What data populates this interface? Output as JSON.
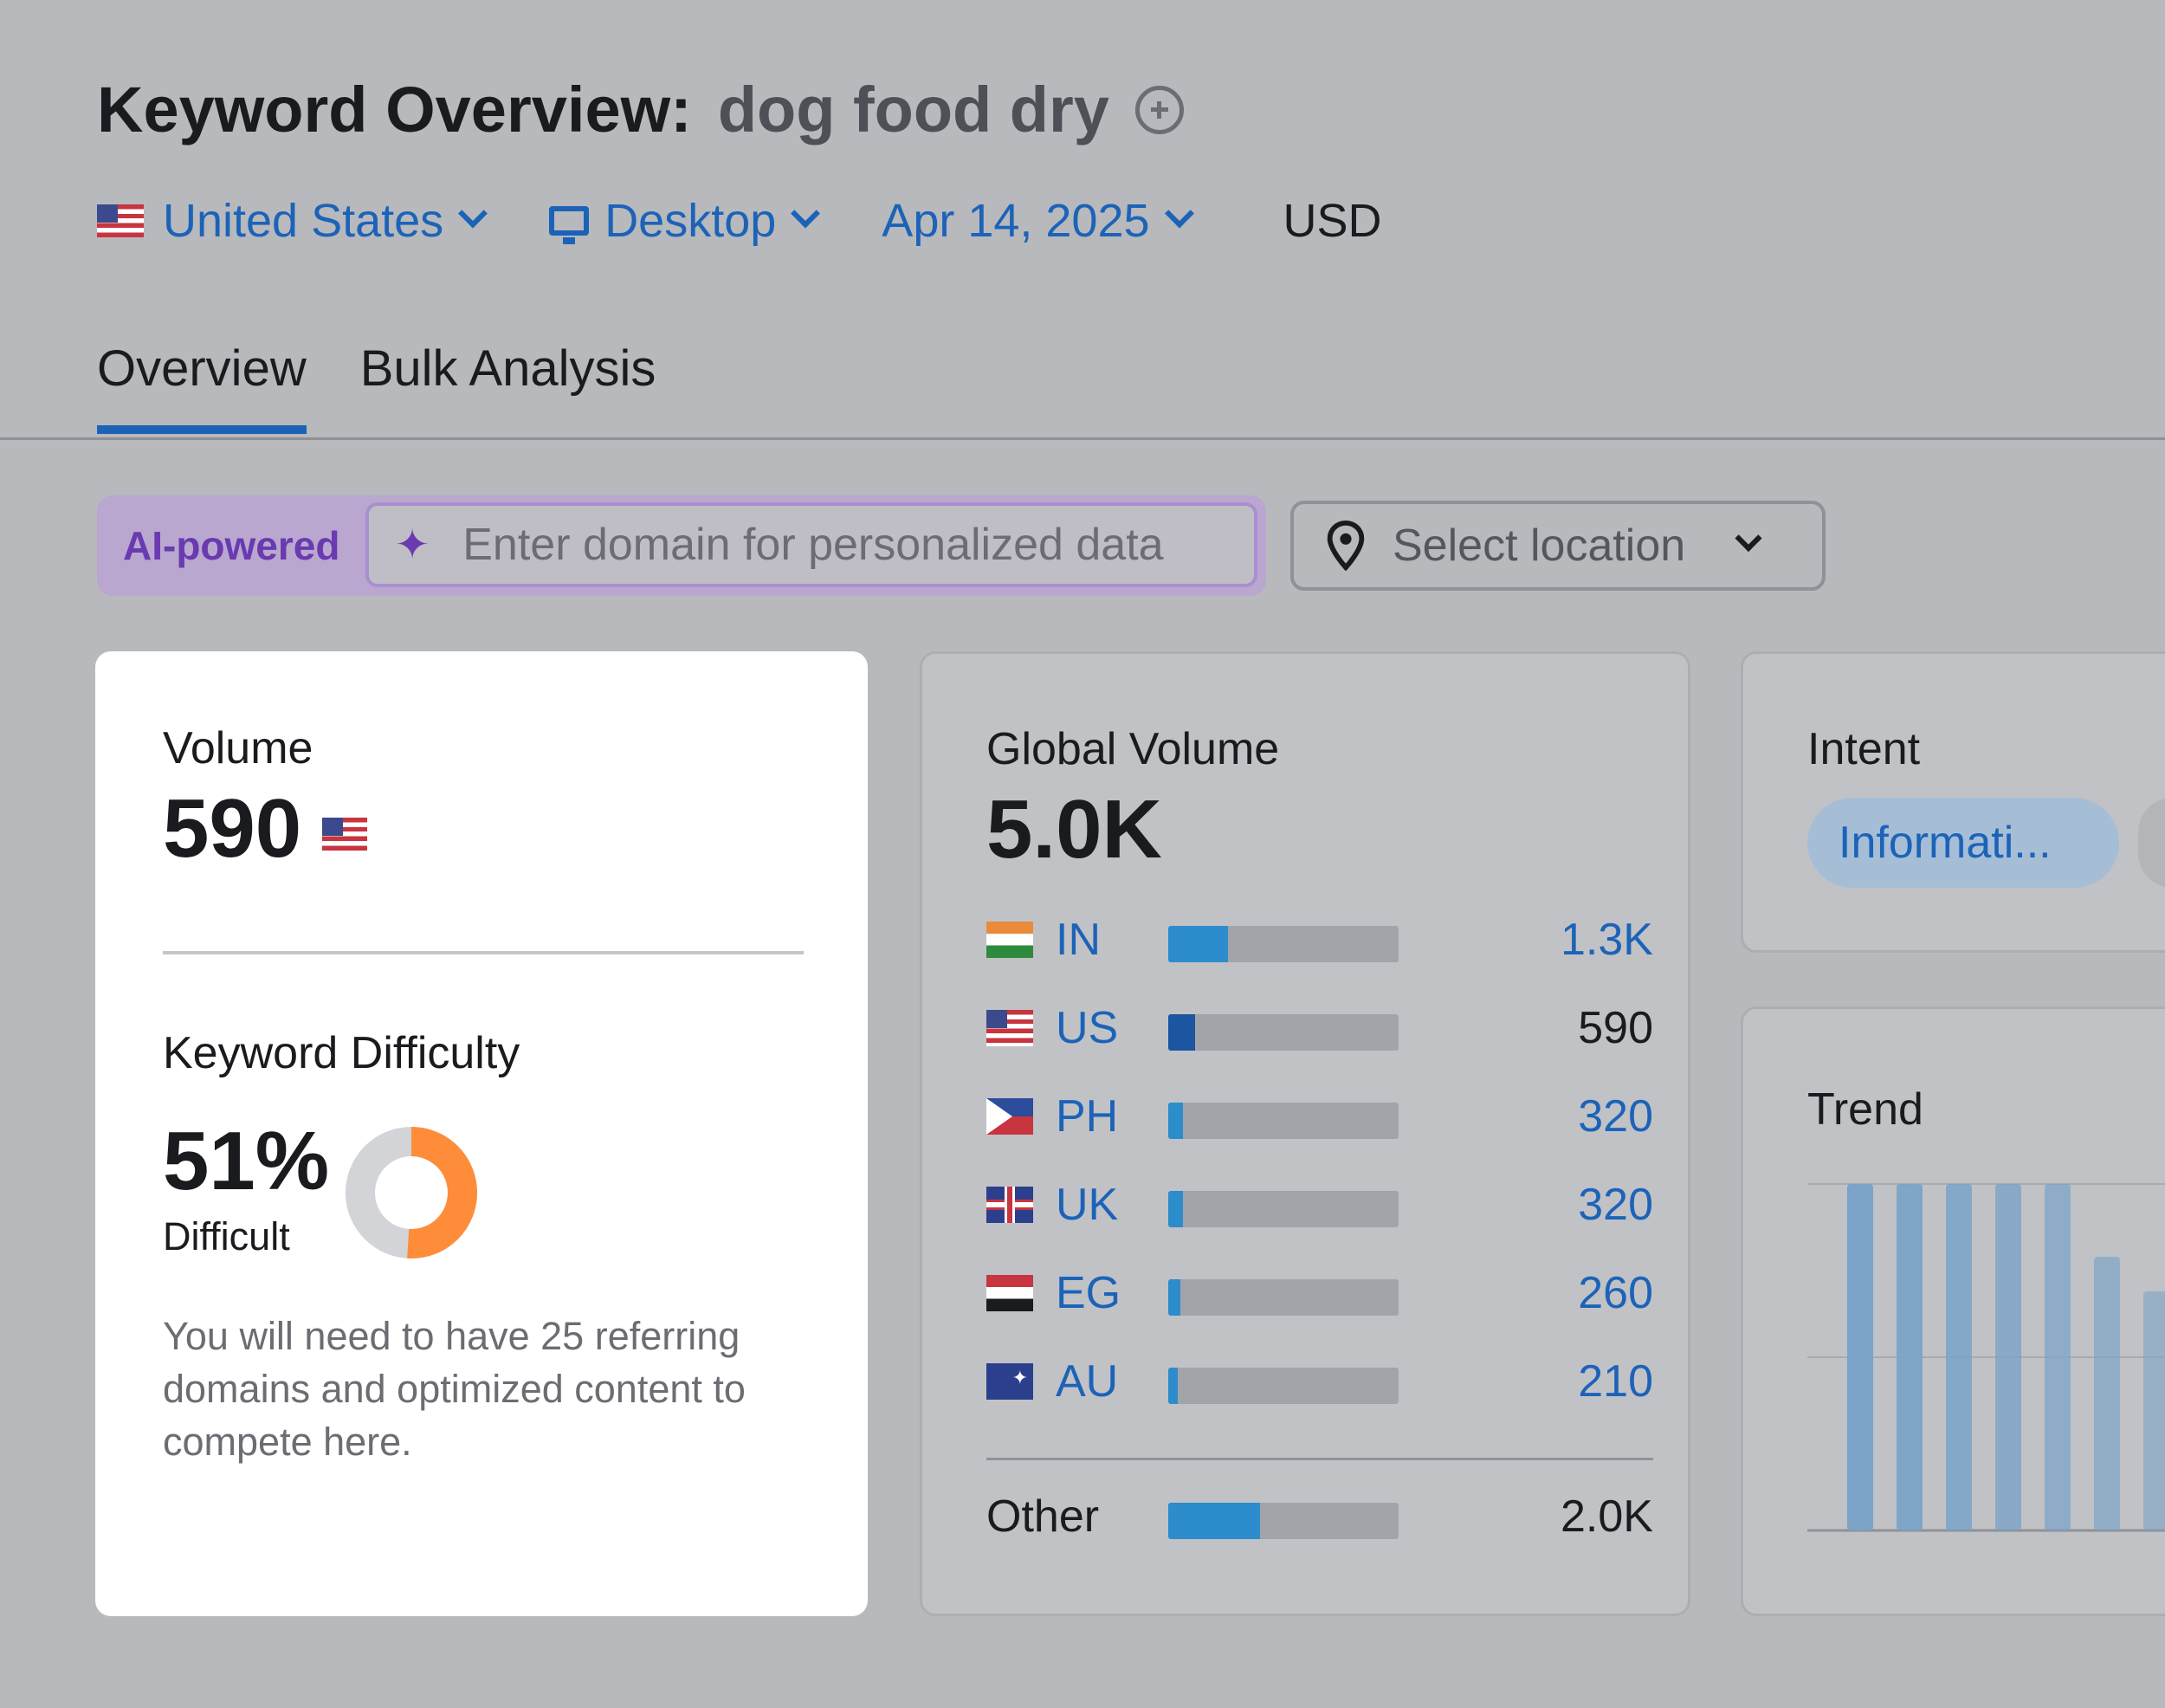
{
  "header": {
    "title_prefix": "Keyword Overview:",
    "keyword": "dog food dry"
  },
  "filters": {
    "country": "United States",
    "device": "Desktop",
    "date": "Apr 14, 2025",
    "currency": "USD"
  },
  "tabs": [
    {
      "label": "Overview",
      "active": true
    },
    {
      "label": "Bulk Analysis",
      "active": false
    }
  ],
  "ai_bar": {
    "badge": "AI-powered",
    "domain_placeholder": "Enter domain for personalized data",
    "location_placeholder": "Select location"
  },
  "volume_card": {
    "volume_label": "Volume",
    "volume_value": "590",
    "kd_label": "Keyword Difficulty",
    "kd_value": "51%",
    "kd_percent": 51,
    "kd_rating": "Difficult",
    "kd_description": "You will need to have 25 referring domains and optimized content to compete here.",
    "colors": {
      "kd_fill": "#ff8c38",
      "kd_track": "#d3d4d7"
    }
  },
  "global_card": {
    "label": "Global Volume",
    "value": "5.0K",
    "rows": [
      {
        "code": "IN",
        "value": "1.3K",
        "share": 0.26
      },
      {
        "code": "US",
        "value": "590",
        "share": 0.118
      },
      {
        "code": "PH",
        "value": "320",
        "share": 0.064
      },
      {
        "code": "UK",
        "value": "320",
        "share": 0.064
      },
      {
        "code": "EG",
        "value": "260",
        "share": 0.052
      },
      {
        "code": "AU",
        "value": "210",
        "share": 0.042
      }
    ],
    "other": {
      "label": "Other",
      "value": "2.0K",
      "share": 0.4
    }
  },
  "intent_card": {
    "label": "Intent",
    "pill": "Informati..."
  },
  "trend_card": {
    "label": "Trend",
    "bars": [
      1.0,
      1.0,
      1.0,
      1.0,
      1.0,
      0.79,
      0.69
    ]
  }
}
